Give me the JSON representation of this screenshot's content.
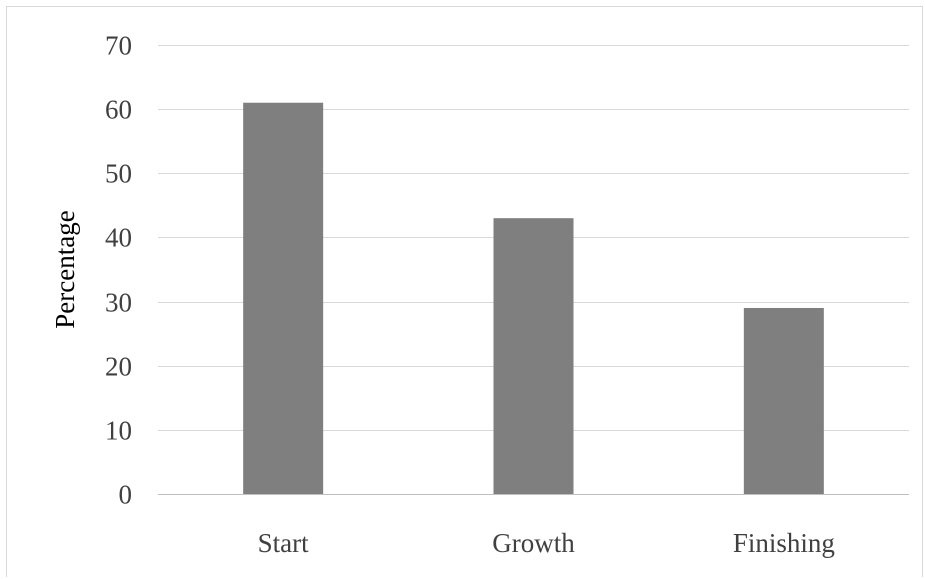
{
  "chart_data": {
    "type": "bar",
    "title": "",
    "xlabel": "",
    "ylabel": "Percentage",
    "categories": [
      "Start",
      "Growth",
      "Finishing"
    ],
    "values": [
      61,
      43,
      29
    ],
    "ylim": [
      0,
      70
    ],
    "yticks": [
      0,
      10,
      20,
      30,
      40,
      50,
      60,
      70
    ],
    "grid": true,
    "legend": "none",
    "colors": {
      "bar": "#7f7f7f",
      "grid": "#d9d9d9"
    }
  }
}
